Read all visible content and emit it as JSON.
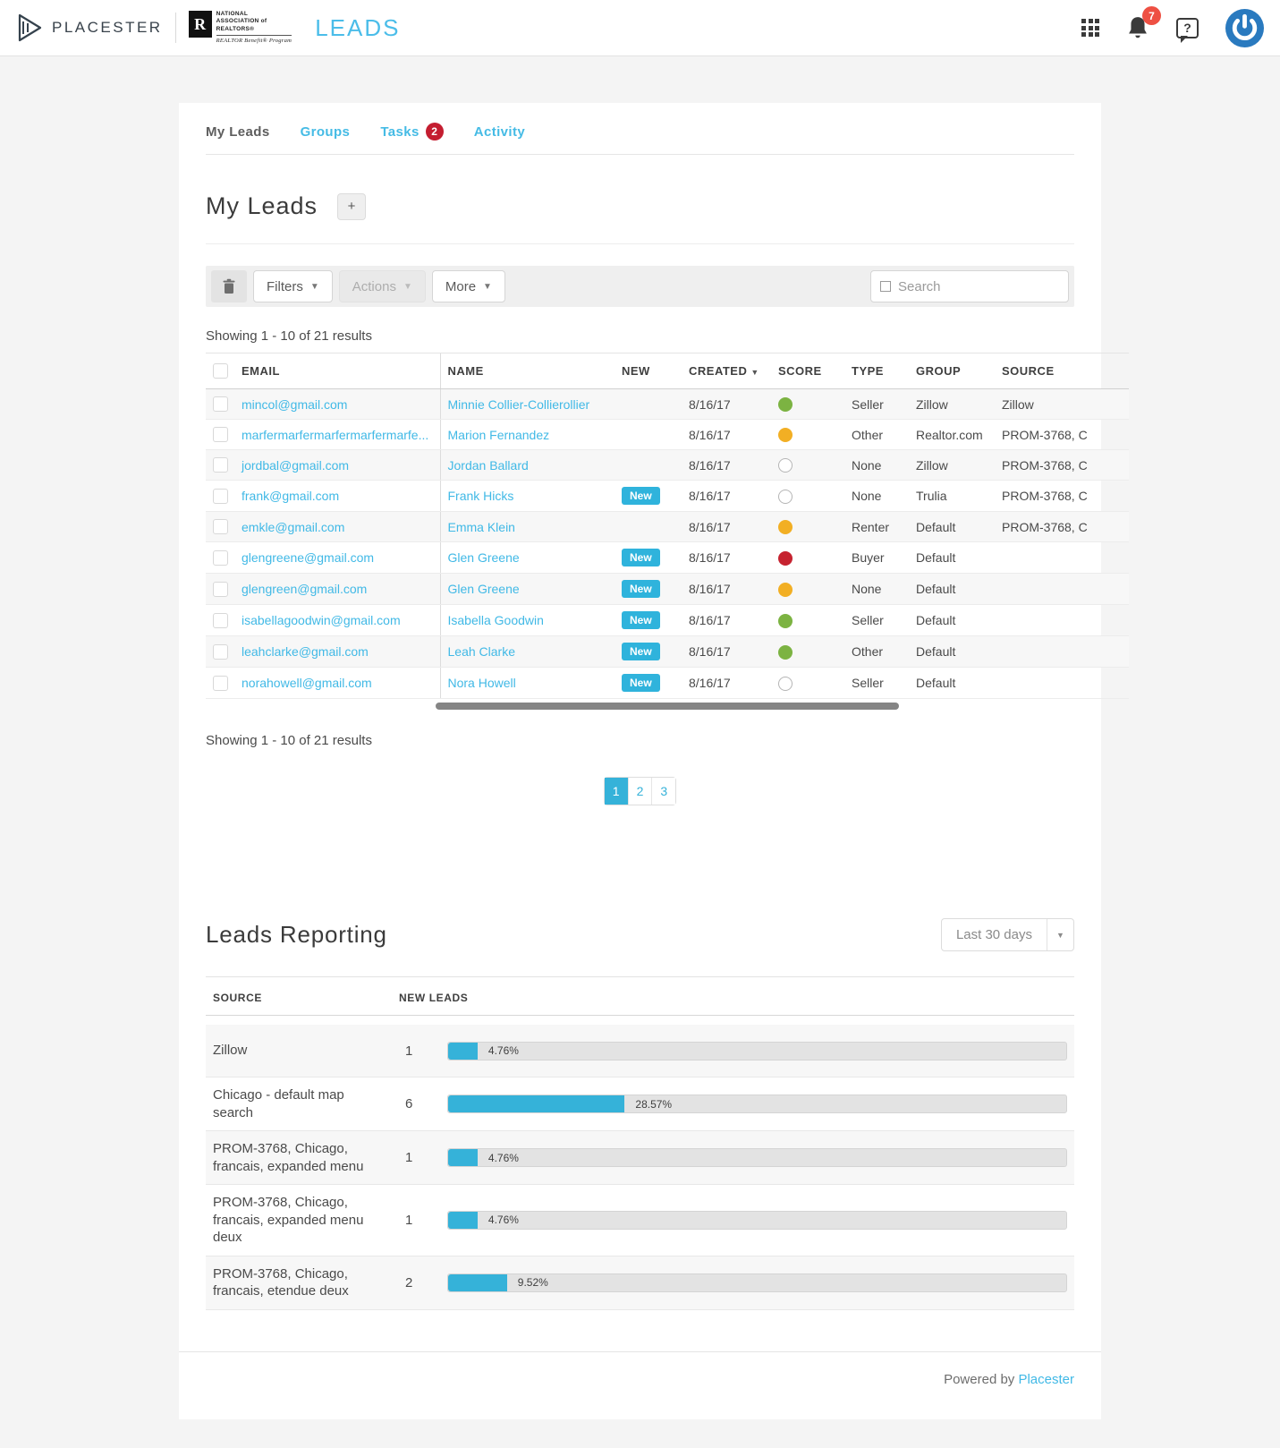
{
  "navbar": {
    "brand": "PLACESTER",
    "nar_logo_letter": "R",
    "nar_text": "NATIONAL\nASSOCIATION of\nREALTORS®",
    "nar_sub": "REALTOR Benefit® Program",
    "app_title": "LEADS",
    "notification_count": "7",
    "help_glyph": "?"
  },
  "tabs": [
    {
      "label": "My Leads",
      "active": true
    },
    {
      "label": "Groups"
    },
    {
      "label": "Tasks",
      "badge": "2"
    },
    {
      "label": "Activity"
    }
  ],
  "page": {
    "title": "My Leads",
    "add_button": "+"
  },
  "toolbar": {
    "filters_label": "Filters",
    "actions_label": "Actions",
    "more_label": "More",
    "search_placeholder": "Search"
  },
  "results_summary": "Showing 1 - 10 of 21 results",
  "table": {
    "columns": {
      "email": "Email",
      "name": "Name",
      "new": "New",
      "created": "Created",
      "score": "Score",
      "type": "Type",
      "group": "Group",
      "source": "Source"
    },
    "rows": [
      {
        "email": "mincol@gmail.com",
        "name": "Minnie Collier-Collierollier",
        "new": false,
        "created": "8/16/17",
        "score": "green",
        "type": "Seller",
        "group": "Zillow",
        "source": "Zillow"
      },
      {
        "email": "marfermarfermarfermarfermarfe...",
        "name": "Marion Fernandez",
        "new": false,
        "created": "8/16/17",
        "score": "yellow",
        "type": "Other",
        "group": "Realtor.com",
        "source": "PROM-3768, C"
      },
      {
        "email": "jordbal@gmail.com",
        "name": "Jordan Ballard",
        "new": false,
        "created": "8/16/17",
        "score": "none",
        "type": "None",
        "group": "Zillow",
        "source": "PROM-3768, C"
      },
      {
        "email": "frank@gmail.com",
        "name": "Frank Hicks",
        "new": true,
        "created": "8/16/17",
        "score": "none",
        "type": "None",
        "group": "Trulia",
        "source": "PROM-3768, C"
      },
      {
        "email": "emkle@gmail.com",
        "name": "Emma Klein",
        "new": false,
        "created": "8/16/17",
        "score": "yellow",
        "type": "Renter",
        "group": "Default",
        "source": "PROM-3768, C"
      },
      {
        "email": "glengreene@gmail.com",
        "name": "Glen Greene",
        "new": true,
        "created": "8/16/17",
        "score": "red",
        "type": "Buyer",
        "group": "Default",
        "source": ""
      },
      {
        "email": "glengreen@gmail.com",
        "name": "Glen Greene",
        "new": true,
        "created": "8/16/17",
        "score": "yellow",
        "type": "None",
        "group": "Default",
        "source": ""
      },
      {
        "email": "isabellagoodwin@gmail.com",
        "name": "Isabella Goodwin",
        "new": true,
        "created": "8/16/17",
        "score": "green",
        "type": "Seller",
        "group": "Default",
        "source": ""
      },
      {
        "email": "leahclarke@gmail.com",
        "name": "Leah Clarke",
        "new": true,
        "created": "8/16/17",
        "score": "green",
        "type": "Other",
        "group": "Default",
        "source": ""
      },
      {
        "email": "norahowell@gmail.com",
        "name": "Nora Howell",
        "new": true,
        "created": "8/16/17",
        "score": "none",
        "type": "Seller",
        "group": "Default",
        "source": ""
      }
    ],
    "new_badge_label": "New",
    "sort_arrow": "▼"
  },
  "pagination": {
    "pages": [
      "1",
      "2",
      "3"
    ],
    "active": "1"
  },
  "reporting": {
    "title": "Leads Reporting",
    "range_label": "Last 30 days",
    "columns": {
      "source": "Source",
      "new_leads": "New Leads"
    },
    "rows": [
      {
        "source": "Zillow",
        "count": "1",
        "percent_label": "4.76%",
        "percent": 4.76
      },
      {
        "source": "Chicago - default map search",
        "count": "6",
        "percent_label": "28.57%",
        "percent": 28.57
      },
      {
        "source": "PROM-3768, Chicago, francais, expanded menu",
        "count": "1",
        "percent_label": "4.76%",
        "percent": 4.76
      },
      {
        "source": "PROM-3768, Chicago, francais, expanded menu deux",
        "count": "1",
        "percent_label": "4.76%",
        "percent": 4.76
      },
      {
        "source": "PROM-3768, Chicago, francais, etendue deux",
        "count": "2",
        "percent_label": "9.52%",
        "percent": 9.52
      }
    ]
  },
  "footer": {
    "powered_by": "Powered by",
    "brand_link": "Placester"
  },
  "colors": {
    "accent_blue": "#35b2d9",
    "link_blue": "#41b9e6",
    "title_blue": "#4bbde9",
    "notification_red": "#ee5043",
    "tasks_badge_red": "#c41d30",
    "score_green": "#7cb342",
    "score_yellow": "#f2af24",
    "score_red": "#c62330",
    "power_blue": "#2a7abf"
  }
}
